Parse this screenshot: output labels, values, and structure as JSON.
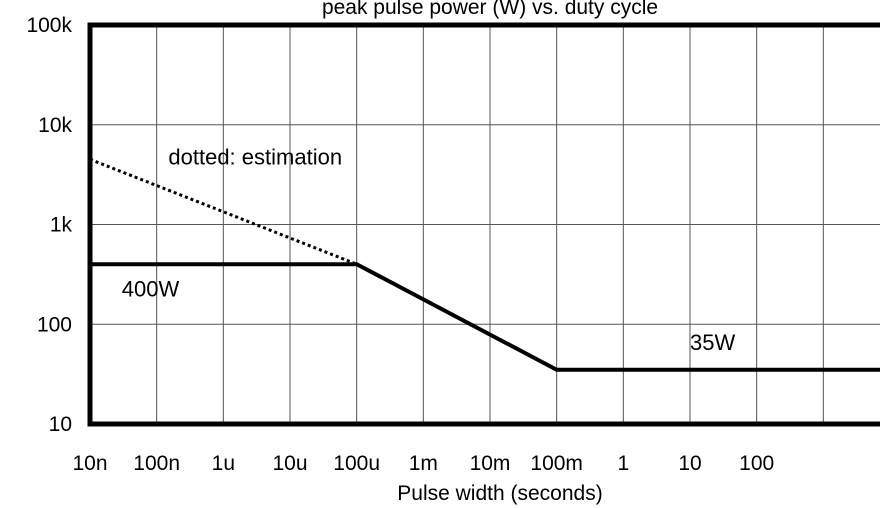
{
  "chart_data": {
    "type": "line",
    "title": "peak pulse power (W) vs. duty cycle",
    "xlabel": "Pulse width (seconds)",
    "ylabel": "",
    "x_scale": "log",
    "y_scale": "log",
    "xlim": [
      1e-08,
      10000
    ],
    "ylim": [
      10,
      100000
    ],
    "grid": true,
    "x_ticks": [
      {
        "value": 1e-08,
        "label": "10n"
      },
      {
        "value": 1e-07,
        "label": "100n"
      },
      {
        "value": 1e-06,
        "label": "1u"
      },
      {
        "value": 1e-05,
        "label": "10u"
      },
      {
        "value": 0.0001,
        "label": "100u"
      },
      {
        "value": 0.001,
        "label": "1m"
      },
      {
        "value": 0.01,
        "label": "10m"
      },
      {
        "value": 0.1,
        "label": "100m"
      },
      {
        "value": 1,
        "label": "1"
      },
      {
        "value": 10,
        "label": "10"
      },
      {
        "value": 100,
        "label": "100"
      }
    ],
    "y_ticks": [
      {
        "value": 10,
        "label": "10"
      },
      {
        "value": 100,
        "label": "100"
      },
      {
        "value": 1000,
        "label": "1k"
      },
      {
        "value": 10000,
        "label": "10k"
      },
      {
        "value": 100000,
        "label": "100k"
      }
    ],
    "series": [
      {
        "style": "solid",
        "color": "#000000",
        "points": [
          [
            1e-08,
            400
          ],
          [
            0.0001,
            400
          ],
          [
            0.1,
            35
          ],
          [
            10000,
            35
          ]
        ]
      },
      {
        "style": "dotted",
        "color": "#000000",
        "points": [
          [
            1e-08,
            4500
          ],
          [
            0.0001,
            400
          ]
        ]
      }
    ],
    "annotations": [
      {
        "id": "dotted-note",
        "text": "dotted: estimation",
        "x": 1.5e-07,
        "y": 4000
      },
      {
        "id": "label-400w",
        "text": "400W",
        "x": 3e-08,
        "y": 190
      },
      {
        "id": "label-35w",
        "text": "35W",
        "x": 10,
        "y": 55
      }
    ]
  }
}
